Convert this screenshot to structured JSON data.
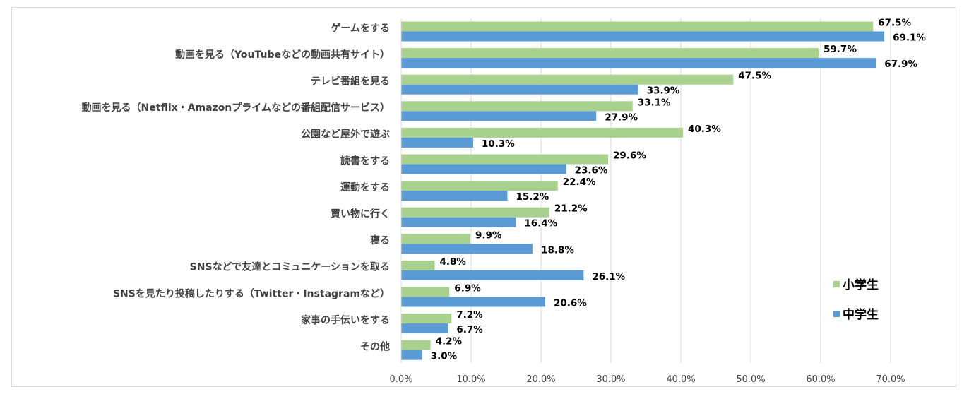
{
  "chart_data": {
    "type": "bar",
    "orientation": "horizontal",
    "categories": [
      "ゲームをする",
      "動画を見る（YouTubeなどの動画共有サイト）",
      "テレビ番組を見る",
      "動画を見る（Netflix・Amazonプライムなどの番組配信サービス）",
      "公園など屋外で遊ぶ",
      "読書をする",
      "運動をする",
      "買い物に行く",
      "寝る",
      "SNSなどで友達とコミュニケーションを取る",
      "SNSを見たり投稿したりする（Twitter・Instagramなど）",
      "家事の手伝いをする",
      "その他"
    ],
    "series": [
      {
        "name": "小学生",
        "color": "#a9d18e",
        "values": [
          67.5,
          59.7,
          47.5,
          33.1,
          40.3,
          29.6,
          22.4,
          21.2,
          9.9,
          4.8,
          6.9,
          7.2,
          4.2
        ],
        "labels": [
          "67.5%",
          "59.7%",
          "47.5%",
          "33.1%",
          "40.3%",
          "29.6%",
          "22.4%",
          "21.2%",
          "9.9%",
          "4.8%",
          "6.9%",
          "7.2%",
          "4.2%"
        ]
      },
      {
        "name": "中学生",
        "color": "#5b9bd5",
        "values": [
          69.1,
          67.9,
          33.9,
          27.9,
          10.3,
          23.6,
          15.2,
          16.4,
          18.8,
          26.1,
          20.6,
          6.7,
          3.0
        ],
        "labels": [
          "69.1%",
          "67.9%",
          "33.9%",
          "27.9%",
          "10.3%",
          "23.6%",
          "15.2%",
          "16.4%",
          "18.8%",
          "26.1%",
          "20.6%",
          "6.7%",
          "3.0%"
        ]
      }
    ],
    "xlim": [
      0,
      70
    ],
    "xticks": [
      "0.0%",
      "10.0%",
      "20.0%",
      "30.0%",
      "40.0%",
      "50.0%",
      "60.0%",
      "70.0%"
    ],
    "grid": true,
    "legend_position": "right"
  }
}
